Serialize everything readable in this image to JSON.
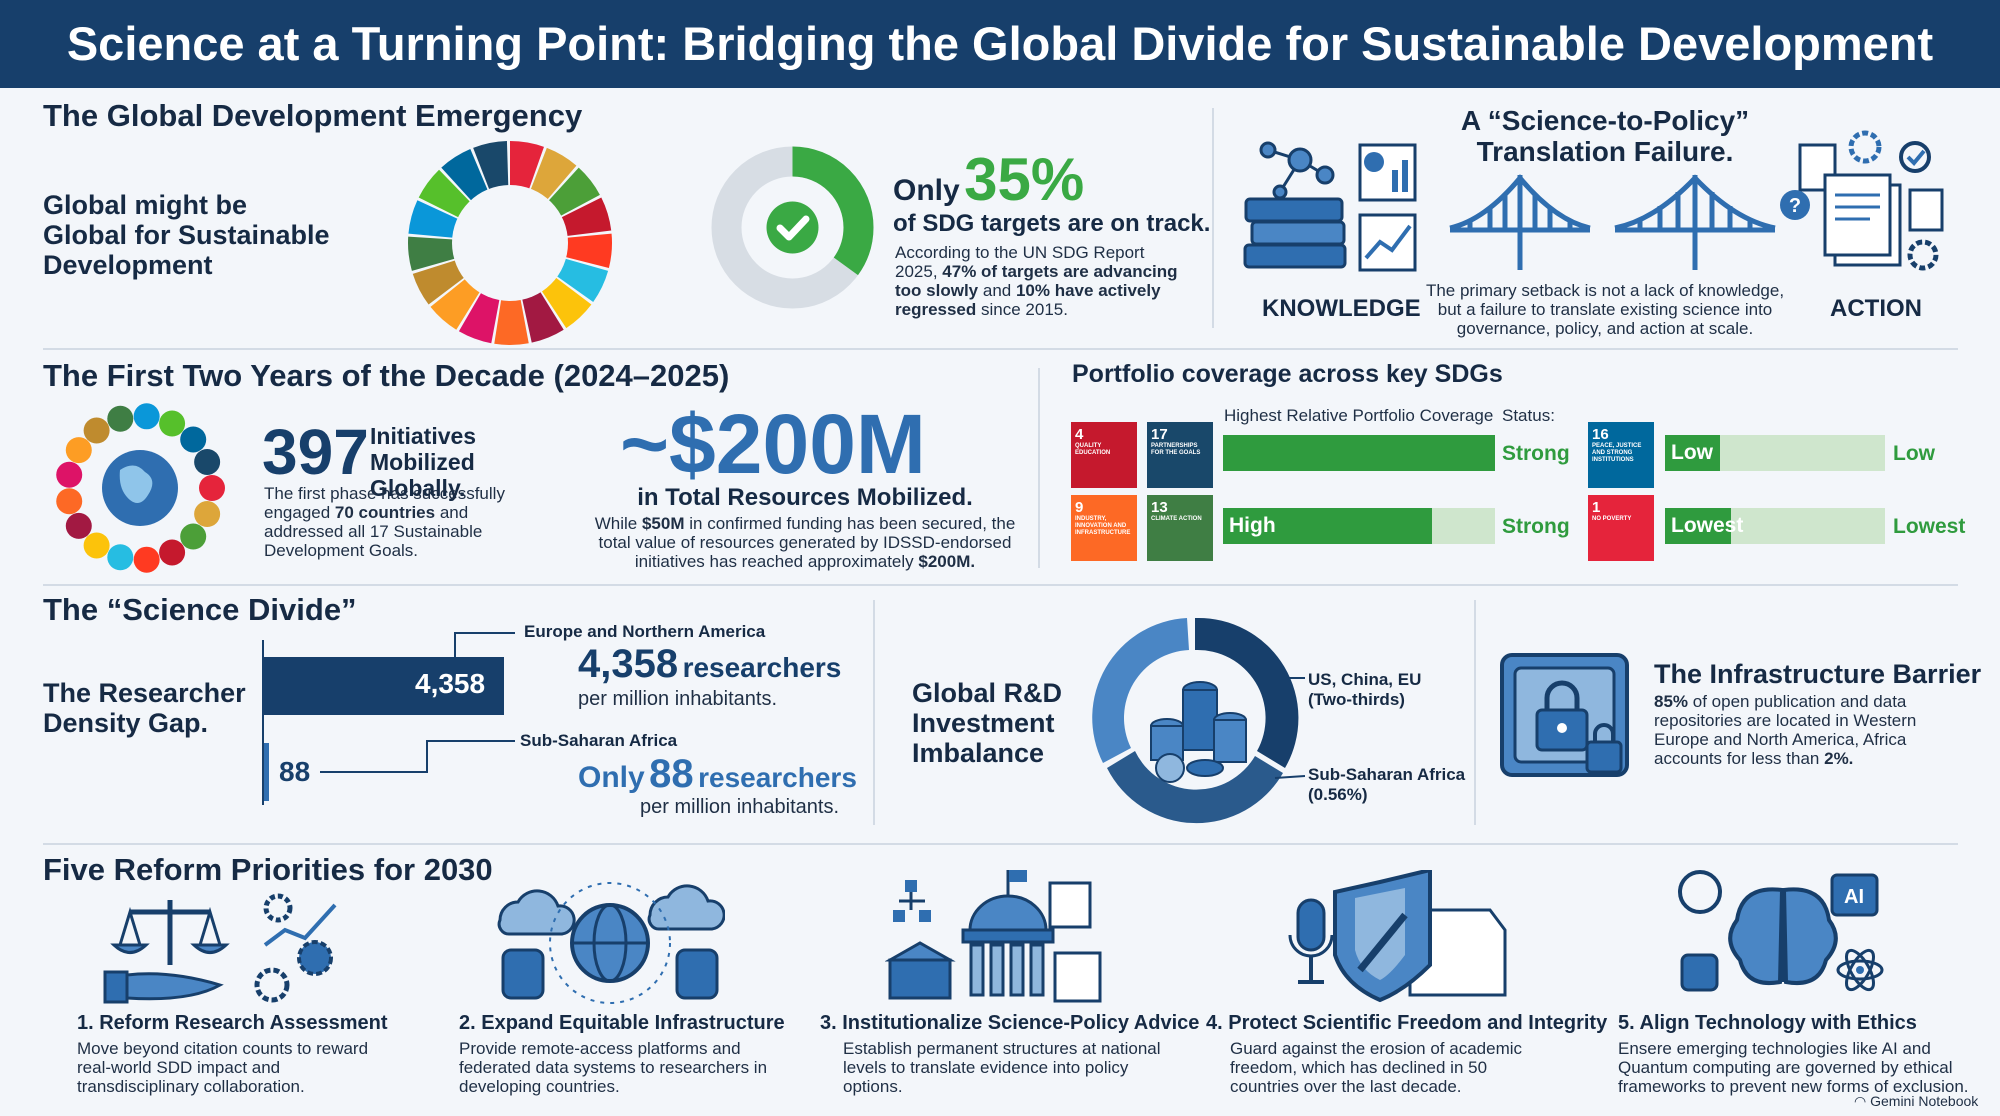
{
  "header": {
    "title": "Science at a Turning Point: Bridging the Global Divide for Sustainable Development"
  },
  "emergency": {
    "title": "The Global Development Emergency",
    "label": "Global might be Global for Sustainable Development",
    "only": "Only",
    "percent": "35%",
    "subtitle": "of SDG targets are on track.",
    "on_track_fraction": 0.35,
    "desc_1": "According to the UN SDG Report 2025,",
    "desc_2": "47% of targets are advancing too slowly",
    "desc_3": "and",
    "desc_4": "10% have actively regressed",
    "desc_5": "since 2015."
  },
  "translation": {
    "title_1": "A “Science-to-Policy”",
    "title_2": "Translation Failure.",
    "knowledge": "KNOWLEDGE",
    "action": "ACTION",
    "desc": "The primary setback is not a lack of knowledge, but a failure to translate existing science into governance, policy, and action at scale."
  },
  "first_two": {
    "title": "The First Two Years of the Decade (2024–2025)",
    "count": "397",
    "count_label": "Initiatives Mobilized Globally.",
    "desc_1": "The first phase has successfully engaged",
    "desc_2": "70 countries",
    "desc_3": "and addressed all 17 Sustainable Development Goals.",
    "amount": "~$200M",
    "amount_label": "in Total Resources Mobilized.",
    "amount_desc_1": "While",
    "amount_desc_2": "$50M",
    "amount_desc_3": "in confirmed funding has been secured, the total value of resources generated by IDSSD-endorsed initiatives has reached approximately",
    "amount_desc_4": "$200M."
  },
  "portfolio": {
    "title": "Portfolio coverage across key SDGs",
    "col_header": "Highest Relative Portfolio Coverage",
    "status_header": "Status:",
    "tiles": [
      {
        "num": "4",
        "text": "QUALITY EDUCATION",
        "color": "#c5192d"
      },
      {
        "num": "17",
        "text": "PARTNERSHIPS FOR THE GOALS",
        "color": "#19486a"
      },
      {
        "num": "9",
        "text": "INDUSTRY, INNOVATION AND INFRASTRUCTURE",
        "color": "#fd6925"
      },
      {
        "num": "13",
        "text": "CLIMATE ACTION",
        "color": "#3f7e44"
      },
      {
        "num": "16",
        "text": "PEACE, JUSTICE AND STRONG INSTITUTIONS",
        "color": "#00689d"
      },
      {
        "num": "1",
        "text": "NO POVERTY",
        "color": "#e5243b"
      }
    ],
    "rows": [
      {
        "bar_label": "",
        "status": "Strong",
        "fill": 1.0
      },
      {
        "bar_label": "High",
        "status": "Strong",
        "fill": 0.77
      },
      {
        "bar_label": "Low",
        "status": "Low",
        "fill": 0.25
      },
      {
        "bar_label": "Lowest",
        "status": "Lowest",
        "fill": 0.3
      }
    ]
  },
  "divide": {
    "title": "The “Science Divide”",
    "label": "The Researcher Density Gap.",
    "region_1": "Europe and Northern America",
    "value_1": "4,358",
    "value_1_num": 4358,
    "value_1_label": "researchers",
    "per_1": "per million inhabitants.",
    "region_2": "Sub-Saharan Africa",
    "only": "Only",
    "value_2": "88",
    "value_2_num": 88,
    "value_2_label": "researchers",
    "per_2": "per million inhabitants."
  },
  "rd": {
    "label": "Global R&D Investment Imbalance",
    "seg_1": "US, China, EU (Two-thirds)",
    "seg_2": "Sub-Saharan Africa (0.56%)"
  },
  "infra": {
    "title": "The Infrastructure Barrier",
    "desc_1": "85%",
    "desc_2": "of open publication and data repositories are located in Western Europe and North America, Africa accounts for less than",
    "desc_3": "2%."
  },
  "reforms": {
    "title": "Five Reform Priorities for 2030",
    "items": [
      {
        "title": "1. Reform Research Assessment",
        "desc": "Move beyond citation counts to reward real-world SDD impact and transdisciplinary collaboration."
      },
      {
        "title": "2. Expand Equitable Infrastructure",
        "desc": "Provide remote-access platforms and federated data systems to researchers in developing countries."
      },
      {
        "title": "3. Institutionalize Science-Policy Advice",
        "desc": "Establish permanent structures at national levels to translate evidence into policy options."
      },
      {
        "title": "4. Protect Scientific Freedom and Integrity",
        "desc": "Guard against the erosion of academic freedom, which has declined in 50 countries over the last decade."
      },
      {
        "title": "5. Align Technology with Ethics",
        "desc": "Ensere emerging technologies like AI and Quantum computing are governed by ethical frameworks to prevent new forms of exclusion."
      }
    ]
  },
  "footer": {
    "brand": "Gemini Notebook"
  },
  "colors": {
    "navy": "#173f6b",
    "green": "#2f9b3e",
    "lightgreen": "#cfe6cd",
    "blue": "#2f6eb0"
  }
}
